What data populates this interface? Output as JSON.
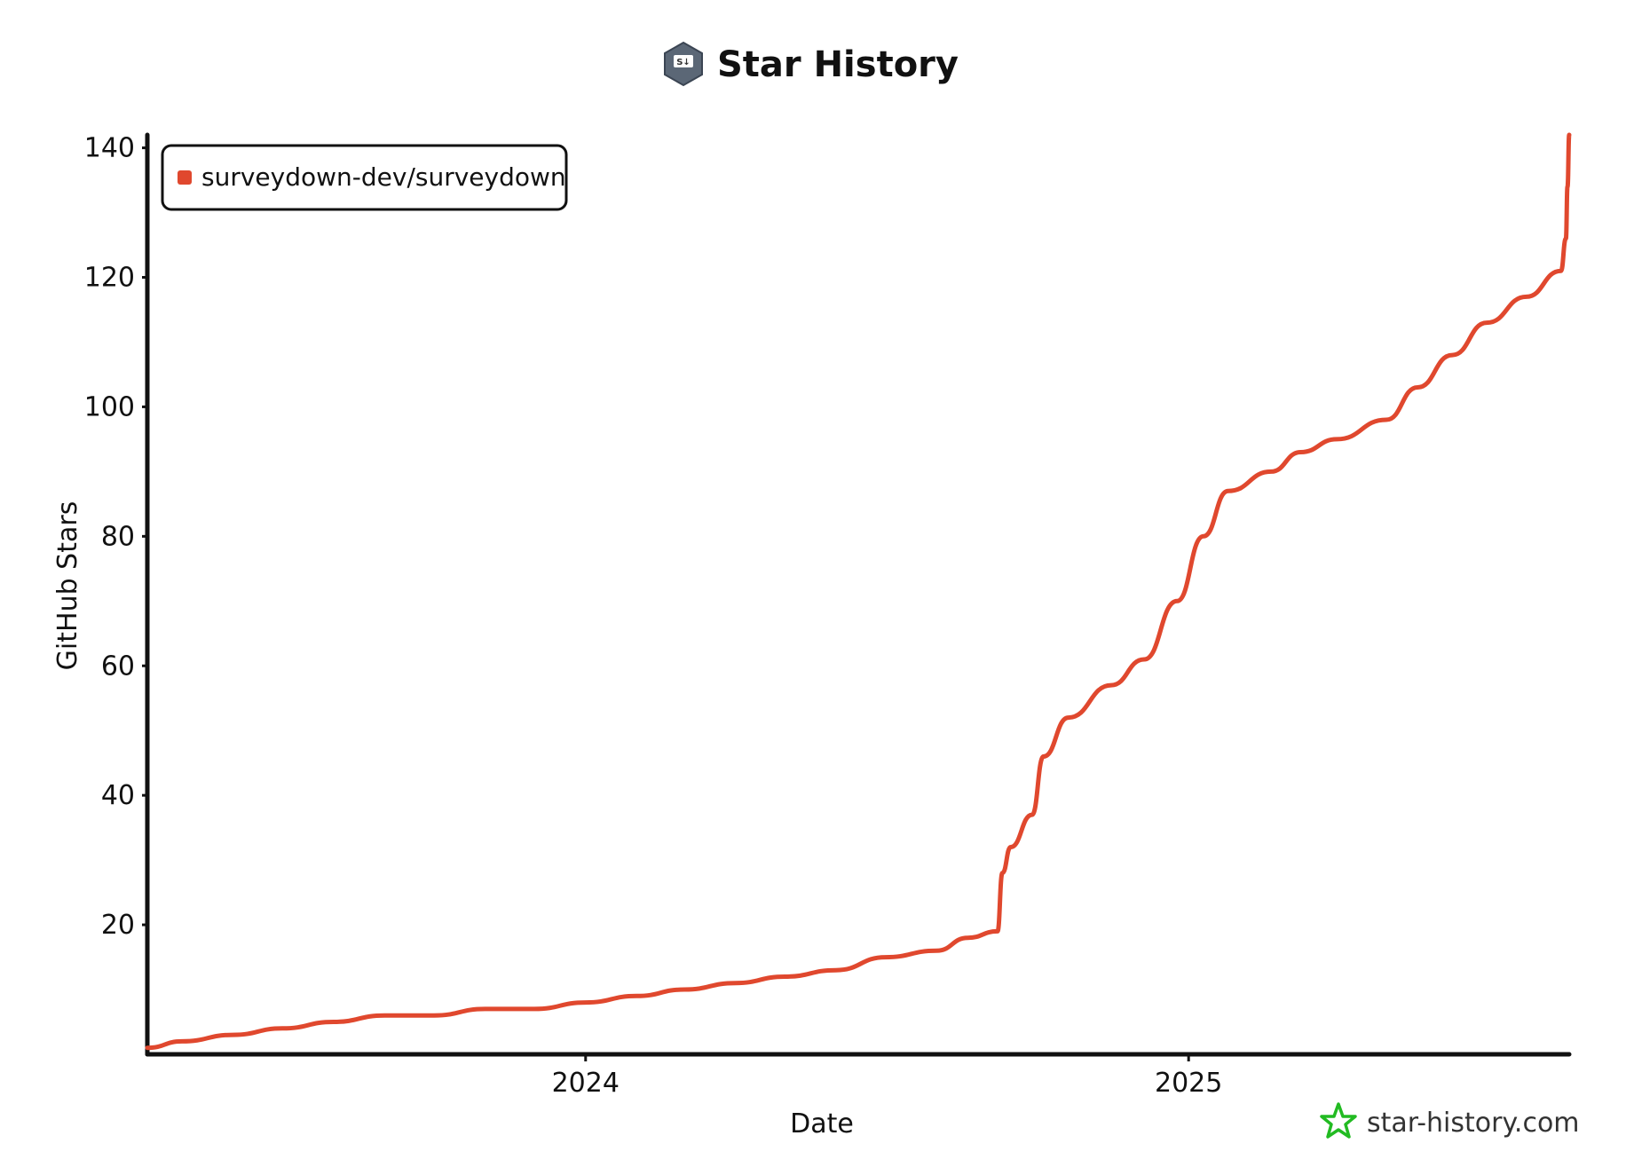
{
  "title": "Star History",
  "brand": {
    "text": "star-history.com",
    "icon": "star-history-logo-icon",
    "color": "#22bb22"
  },
  "logo": {
    "icon": "surveydown-hex-logo-icon",
    "label": "S↓"
  },
  "chart_data": {
    "type": "line",
    "title": "Star History",
    "xlabel": "Date",
    "ylabel": "GitHub Stars",
    "xlim": [
      "2023-04-10",
      "2025-08-20"
    ],
    "ylim": [
      0,
      142
    ],
    "yticks": [
      20,
      40,
      60,
      80,
      100,
      120,
      140
    ],
    "xticks": [
      {
        "label": "2024",
        "date": "2024-01-01"
      },
      {
        "label": "2025",
        "date": "2025-01-01"
      }
    ],
    "grid": false,
    "legend": {
      "position": "top-left"
    },
    "series": [
      {
        "name": "surveydown-dev/surveydown",
        "color": "#e0482e",
        "points": [
          [
            "2023-04-10",
            1
          ],
          [
            "2023-05-01",
            2
          ],
          [
            "2023-06-01",
            3
          ],
          [
            "2023-07-01",
            4
          ],
          [
            "2023-08-01",
            5
          ],
          [
            "2023-09-01",
            6
          ],
          [
            "2023-10-01",
            6
          ],
          [
            "2023-11-01",
            7
          ],
          [
            "2023-12-01",
            7
          ],
          [
            "2024-01-01",
            8
          ],
          [
            "2024-02-01",
            9
          ],
          [
            "2024-03-01",
            10
          ],
          [
            "2024-04-01",
            11
          ],
          [
            "2024-05-01",
            12
          ],
          [
            "2024-06-01",
            13
          ],
          [
            "2024-07-01",
            15
          ],
          [
            "2024-08-01",
            16
          ],
          [
            "2024-08-20",
            18
          ],
          [
            "2024-09-07",
            19
          ],
          [
            "2024-09-10",
            28
          ],
          [
            "2024-09-15",
            32
          ],
          [
            "2024-09-28",
            37
          ],
          [
            "2024-10-05",
            46
          ],
          [
            "2024-10-20",
            52
          ],
          [
            "2024-11-15",
            57
          ],
          [
            "2024-12-05",
            61
          ],
          [
            "2024-12-25",
            70
          ],
          [
            "2025-01-10",
            80
          ],
          [
            "2025-01-25",
            87
          ],
          [
            "2025-02-20",
            90
          ],
          [
            "2025-03-10",
            93
          ],
          [
            "2025-04-01",
            95
          ],
          [
            "2025-05-01",
            98
          ],
          [
            "2025-05-20",
            103
          ],
          [
            "2025-06-10",
            108
          ],
          [
            "2025-07-01",
            113
          ],
          [
            "2025-07-25",
            117
          ],
          [
            "2025-08-15",
            121
          ],
          [
            "2025-08-18",
            126
          ],
          [
            "2025-08-19",
            134
          ],
          [
            "2025-08-20",
            142
          ]
        ]
      }
    ]
  }
}
